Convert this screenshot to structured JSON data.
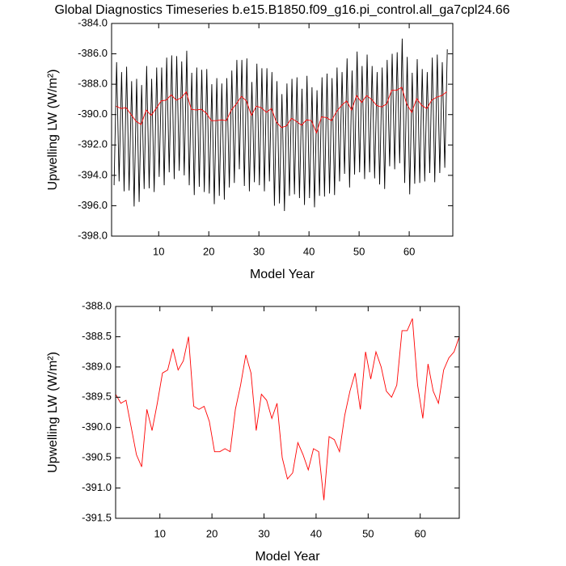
{
  "chart_data": [
    {
      "type": "line",
      "title": "Global Diagnostics Timeseries b.e15.B1850.f09_g16.pi_control.all_ga7cpl24.66",
      "x_label": "Model Year",
      "y_label": "Upwelling LW (W/m²)",
      "xlim": [
        0.6,
        68.7
      ],
      "xticks": [
        10,
        20,
        30,
        40,
        50,
        60
      ],
      "ylim": [
        -398,
        -384
      ],
      "yticks": [
        {
          "value": -398,
          "label": "-398.0"
        },
        {
          "value": -396,
          "label": "-396.0"
        },
        {
          "value": -394,
          "label": "-394.0"
        },
        {
          "value": -392,
          "label": "-392.0"
        },
        {
          "value": -390,
          "label": "-390.0"
        },
        {
          "value": -388,
          "label": "-388.0"
        },
        {
          "value": -386,
          "label": "-386.0"
        },
        {
          "value": -384,
          "label": "-384.0"
        }
      ],
      "series": [
        {
          "color": "#000000",
          "x": [
            1.1,
            1.6,
            2.1,
            2.6,
            3.1,
            3.6,
            4.1,
            4.6,
            5.1,
            5.6,
            6.1,
            6.6,
            7.1,
            7.6,
            8.1,
            8.6,
            9.1,
            9.6,
            10.1,
            10.6,
            11.1,
            11.6,
            12.1,
            12.6,
            13.1,
            13.6,
            14.1,
            14.6,
            15.1,
            15.6,
            16.1,
            16.6,
            17.1,
            17.6,
            18.1,
            18.6,
            19.1,
            19.6,
            20.1,
            20.6,
            21.1,
            21.6,
            22.1,
            22.6,
            23.1,
            23.6,
            24.1,
            24.6,
            25.1,
            25.6,
            26.1,
            26.6,
            27.1,
            27.6,
            28.1,
            28.6,
            29.1,
            29.6,
            30.1,
            30.6,
            31.1,
            31.6,
            32.1,
            32.6,
            33.1,
            33.6,
            34.1,
            34.6,
            35.1,
            35.6,
            36.1,
            36.6,
            37.1,
            37.6,
            38.1,
            38.6,
            39.1,
            39.6,
            40.1,
            40.6,
            41.1,
            41.6,
            42.1,
            42.6,
            43.1,
            43.6,
            44.1,
            44.6,
            45.1,
            45.6,
            46.1,
            46.6,
            47.1,
            47.6,
            48.1,
            48.6,
            49.1,
            49.6,
            50.1,
            50.6,
            51.1,
            51.6,
            52.1,
            52.6,
            53.1,
            53.6,
            54.1,
            54.6,
            55.1,
            55.6,
            56.1,
            56.6,
            57.1,
            57.6,
            58.1,
            58.6,
            59.1,
            59.6,
            60.1,
            60.6,
            61.1,
            61.6,
            62.1,
            62.6,
            63.1,
            63.6,
            64.1,
            64.6,
            65.1,
            65.6,
            66.1,
            66.6,
            67.1,
            67.6
          ],
          "values": [
            -394.65,
            -386.55,
            -394.4,
            -387.2,
            -395.05,
            -386.85,
            -395.0,
            -387.8,
            -396.05,
            -387.65,
            -395.75,
            -388.05,
            -394.9,
            -386.8,
            -394.85,
            -387.65,
            -395.1,
            -386.9,
            -394.1,
            -386.9,
            -394.65,
            -386.25,
            -393.8,
            -386.1,
            -394.25,
            -386.15,
            -393.7,
            -386.5,
            -394.0,
            -385.8,
            -394.65,
            -387.25,
            -395.3,
            -386.9,
            -394.75,
            -387.05,
            -395.1,
            -387.0,
            -395.2,
            -388.0,
            -395.9,
            -387.6,
            -395.35,
            -387.95,
            -395.6,
            -387.6,
            -394.8,
            -387.1,
            -394.5,
            -386.4,
            -393.6,
            -386.4,
            -394.7,
            -386.3,
            -395.05,
            -387.85,
            -394.45,
            -386.65,
            -394.65,
            -386.95,
            -395.05,
            -386.95,
            -394.4,
            -387.2,
            -396.0,
            -387.8,
            -395.85,
            -388.65,
            -396.35,
            -387.95,
            -395.35,
            -387.65,
            -395.25,
            -387.55,
            -395.5,
            -388.3,
            -395.95,
            -387.45,
            -395.5,
            -388.2,
            -396.1,
            -388.4,
            -395.35,
            -387.55,
            -395.4,
            -387.3,
            -395.2,
            -387.6,
            -395.3,
            -386.9,
            -394.4,
            -387.2,
            -393.9,
            -386.3,
            -394.8,
            -387.1,
            -393.95,
            -385.85,
            -393.8,
            -386.8,
            -394.25,
            -386.05,
            -393.8,
            -386.8,
            -394.2,
            -387.2,
            -394.6,
            -386.9,
            -394.9,
            -386.4,
            -393.4,
            -386.0,
            -393.6,
            -385.9,
            -393.2,
            -385.0,
            -394.5,
            -386.2,
            -395.25,
            -387.25,
            -394.55,
            -386.35,
            -394.5,
            -387.0,
            -394.4,
            -387.2,
            -393.85,
            -386.25,
            -394.45,
            -386.05,
            -393.85,
            -386.55,
            -393.5,
            -385.7
          ]
        },
        {
          "color": "#ff0000",
          "x": [
            1.5,
            2.5,
            3.5,
            4.5,
            5.5,
            6.5,
            7.5,
            8.5,
            9.5,
            10.5,
            11.5,
            12.5,
            13.5,
            14.5,
            15.5,
            16.5,
            17.5,
            18.5,
            19.5,
            20.5,
            21.5,
            22.5,
            23.5,
            24.5,
            25.5,
            26.5,
            27.5,
            28.5,
            29.5,
            30.5,
            31.5,
            32.5,
            33.5,
            34.5,
            35.5,
            36.5,
            37.5,
            38.5,
            39.5,
            40.5,
            41.5,
            42.5,
            43.5,
            44.5,
            45.5,
            46.5,
            47.5,
            48.5,
            49.5,
            50.5,
            51.5,
            52.5,
            53.5,
            54.5,
            55.5,
            56.5,
            57.5,
            58.5,
            59.5,
            60.5,
            61.5,
            62.5,
            63.5,
            64.5,
            65.5,
            66.5,
            67.5
          ],
          "values": [
            -389.45,
            -389.6,
            -389.55,
            -390.0,
            -390.45,
            -390.65,
            -389.7,
            -390.05,
            -389.6,
            -389.1,
            -389.05,
            -388.7,
            -389.05,
            -388.9,
            -388.5,
            -389.65,
            -389.7,
            -389.65,
            -389.9,
            -390.4,
            -390.4,
            -390.35,
            -390.4,
            -389.7,
            -389.3,
            -388.8,
            -389.1,
            -390.05,
            -389.45,
            -389.55,
            -389.85,
            -389.6,
            -390.5,
            -390.85,
            -390.75,
            -390.25,
            -390.45,
            -390.7,
            -390.35,
            -390.4,
            -391.2,
            -390.15,
            -390.2,
            -390.4,
            -389.8,
            -389.4,
            -389.1,
            -389.7,
            -388.75,
            -389.2,
            -388.75,
            -389.0,
            -389.4,
            -389.5,
            -389.3,
            -388.4,
            -388.4,
            -388.2,
            -389.3,
            -389.85,
            -388.95,
            -389.4,
            -389.6,
            -389.05,
            -388.85,
            -388.75,
            -388.5
          ]
        }
      ]
    },
    {
      "type": "line",
      "x_label": "Model Year",
      "y_label": "Upwelling LW (W/m²)",
      "xlim": [
        1.5,
        67.5
      ],
      "xticks": [
        10,
        20,
        30,
        40,
        50,
        60
      ],
      "ylim": [
        -391.5,
        -388
      ],
      "yticks": [
        -391.5,
        {
          "value": -391,
          "label": "-391.0"
        },
        -390.5,
        {
          "value": -390,
          "label": "-390.0"
        },
        -389.5,
        {
          "value": -389,
          "label": "-389.0"
        },
        -388.5,
        {
          "value": -388,
          "label": "-388.0"
        }
      ],
      "series": [
        {
          "color": "#ff0000",
          "x": [
            1.5,
            2.5,
            3.5,
            4.5,
            5.5,
            6.5,
            7.5,
            8.5,
            9.5,
            10.5,
            11.5,
            12.5,
            13.5,
            14.5,
            15.5,
            16.5,
            17.5,
            18.5,
            19.5,
            20.5,
            21.5,
            22.5,
            23.5,
            24.5,
            25.5,
            26.5,
            27.5,
            28.5,
            29.5,
            30.5,
            31.5,
            32.5,
            33.5,
            34.5,
            35.5,
            36.5,
            37.5,
            38.5,
            39.5,
            40.5,
            41.5,
            42.5,
            43.5,
            44.5,
            45.5,
            46.5,
            47.5,
            48.5,
            49.5,
            50.5,
            51.5,
            52.5,
            53.5,
            54.5,
            55.5,
            56.5,
            57.5,
            58.5,
            59.5,
            60.5,
            61.5,
            62.5,
            63.5,
            64.5,
            65.5,
            66.5,
            67.5
          ],
          "values": [
            -389.45,
            -389.6,
            -389.55,
            -390.0,
            -390.45,
            -390.65,
            -389.7,
            -390.05,
            -389.6,
            -389.1,
            -389.05,
            -388.7,
            -389.05,
            -388.9,
            -388.5,
            -389.65,
            -389.7,
            -389.65,
            -389.9,
            -390.4,
            -390.4,
            -390.35,
            -390.4,
            -389.7,
            -389.3,
            -388.8,
            -389.1,
            -390.05,
            -389.45,
            -389.55,
            -389.85,
            -389.6,
            -390.5,
            -390.85,
            -390.75,
            -390.25,
            -390.45,
            -390.7,
            -390.35,
            -390.4,
            -391.2,
            -390.15,
            -390.2,
            -390.4,
            -389.8,
            -389.4,
            -389.1,
            -389.7,
            -388.75,
            -389.2,
            -388.75,
            -389.0,
            -389.4,
            -389.5,
            -389.3,
            -388.4,
            -388.4,
            -388.2,
            -389.3,
            -389.85,
            -388.95,
            -389.4,
            -389.6,
            -389.05,
            -388.85,
            -388.75,
            -388.5
          ]
        }
      ]
    }
  ]
}
